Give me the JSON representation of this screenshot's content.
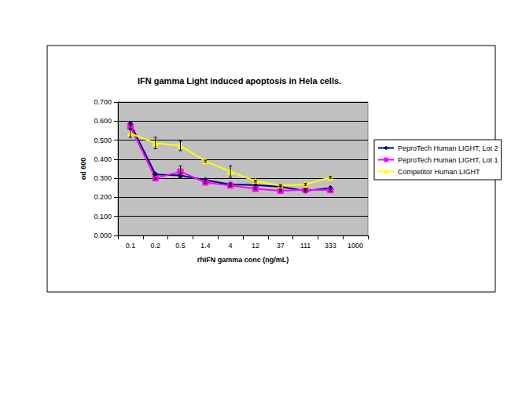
{
  "chart_data": {
    "type": "line",
    "title": "IFN gamma Light induced apoptosis in Hela cells.",
    "x_label": "rhIFN gamma conc (ng/mL)",
    "y_label": "od 600",
    "categories": [
      "0.1",
      "0.2",
      "0.5",
      "1.4",
      "4",
      "12",
      "37",
      "111",
      "333",
      "1000"
    ],
    "series": [
      {
        "name": "PeproTech Human LIGHT, Lot 2",
        "color": "#000080",
        "marker": "diamond",
        "values": [
          0.585,
          0.32,
          0.315,
          0.29,
          0.268,
          0.265,
          0.255,
          0.235,
          0.248,
          null
        ],
        "errors": [
          0.005,
          0.005,
          0.01,
          0.005,
          0.005,
          0.005,
          0.005,
          0.005,
          0.005,
          null
        ]
      },
      {
        "name": "PeproTech Human LIGHT, Lot 1",
        "color": "#ff00ff",
        "marker": "square",
        "values": [
          0.57,
          0.3,
          0.335,
          0.278,
          0.262,
          0.245,
          0.235,
          0.24,
          0.238,
          null
        ],
        "errors": [
          0.01,
          0.005,
          0.03,
          0.005,
          0.005,
          0.005,
          0.005,
          0.005,
          0.005,
          null
        ]
      },
      {
        "name": "Competitor Human LIGHT",
        "color": "#ffff00",
        "marker": "triangle",
        "values": [
          0.535,
          0.485,
          0.47,
          0.39,
          0.335,
          0.285,
          0.262,
          0.268,
          0.305,
          null
        ],
        "errors": [
          0.02,
          0.03,
          0.025,
          0.005,
          0.03,
          0.005,
          0.005,
          0.005,
          0.005,
          null
        ]
      }
    ],
    "ylim": [
      0,
      0.7
    ],
    "yticks": [
      {
        "value": 0,
        "label": "0.000"
      },
      {
        "value": 0.1,
        "label": "0.100"
      },
      {
        "value": 0.2,
        "label": "0.200"
      },
      {
        "value": 0.3,
        "label": "0.300"
      },
      {
        "value": 0.4,
        "label": "0.400"
      },
      {
        "value": 0.5,
        "label": "0.500"
      },
      {
        "value": 0.6,
        "label": "0.600"
      },
      {
        "value": 0.7,
        "label": "0.700"
      }
    ],
    "grid": true,
    "legend": "right"
  }
}
